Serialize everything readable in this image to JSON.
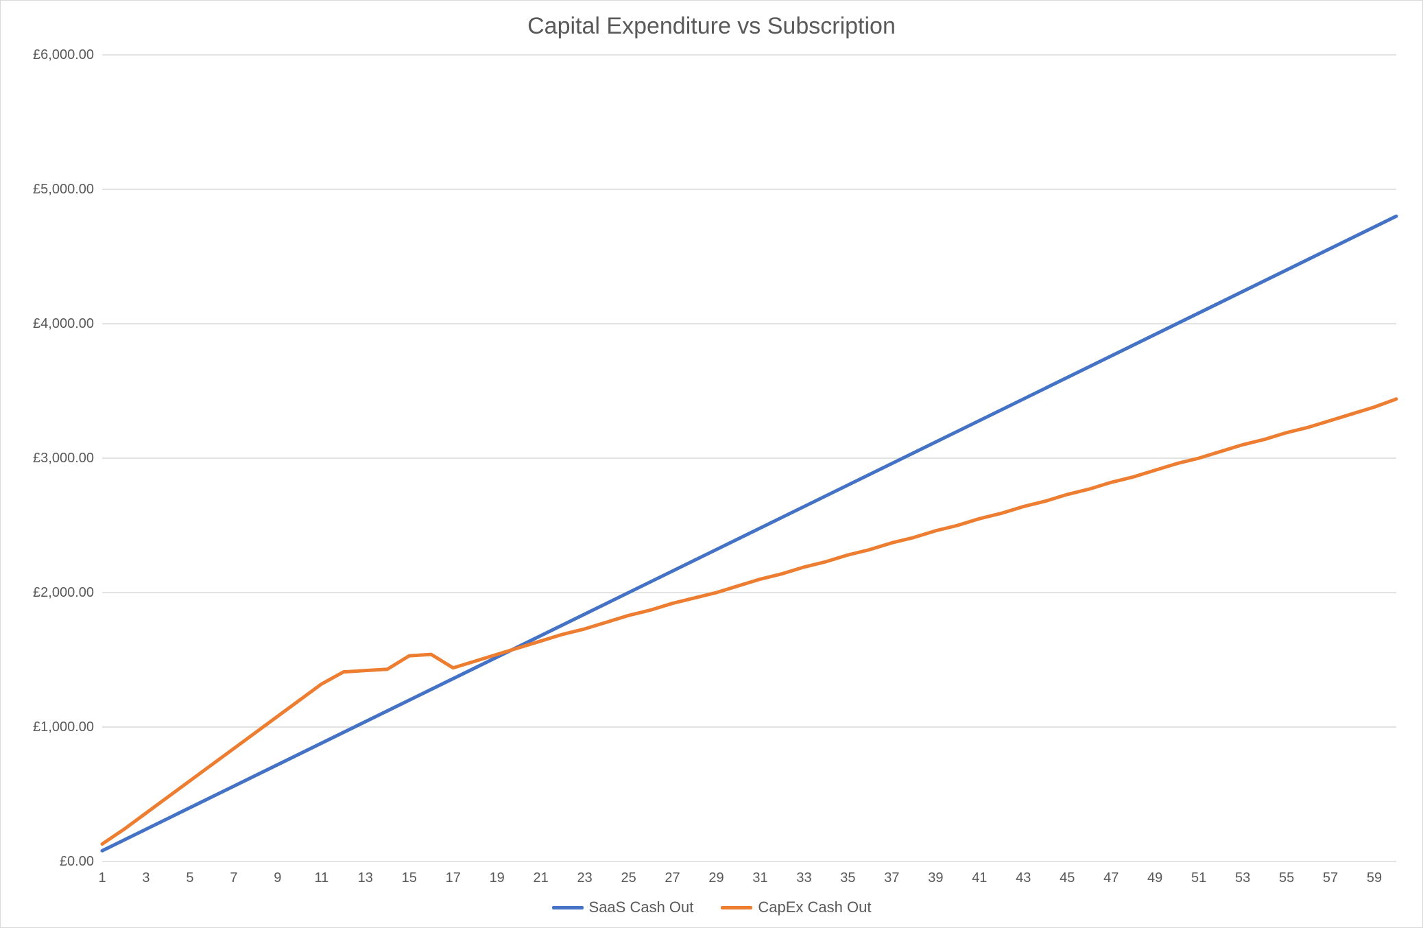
{
  "chart": {
    "type": "line",
    "title": "Capital Expenditure vs Subscription",
    "title_fontsize": 34,
    "title_color": "#595959",
    "background_color": "#ffffff",
    "border_color": "#d9d9d9",
    "grid_color": "#d9d9d9",
    "axis_label_color": "#595959",
    "axis_fontsize": 20,
    "line_width": 5,
    "x": {
      "min": 1,
      "max": 60,
      "tick_start": 1,
      "tick_step": 2,
      "tick_end": 59
    },
    "y": {
      "min": 0,
      "max": 6000,
      "tick_start": 0,
      "tick_step": 1000,
      "tick_end": 6000,
      "tick_format": "gbp2"
    },
    "series": [
      {
        "name": "SaaS Cash Out",
        "color": "#4472c4",
        "data": [
          [
            1,
            80
          ],
          [
            60,
            4800
          ]
        ]
      },
      {
        "name": "CapEx Cash Out",
        "color": "#ed7d31",
        "data": [
          [
            1,
            130
          ],
          [
            2,
            240
          ],
          [
            3,
            360
          ],
          [
            4,
            480
          ],
          [
            5,
            600
          ],
          [
            6,
            720
          ],
          [
            7,
            840
          ],
          [
            8,
            960
          ],
          [
            9,
            1080
          ],
          [
            10,
            1200
          ],
          [
            11,
            1320
          ],
          [
            12,
            1410
          ],
          [
            13,
            1420
          ],
          [
            14,
            1430
          ],
          [
            15,
            1530
          ],
          [
            16,
            1540
          ],
          [
            17,
            1440
          ],
          [
            18,
            1490
          ],
          [
            19,
            1540
          ],
          [
            20,
            1590
          ],
          [
            21,
            1640
          ],
          [
            22,
            1690
          ],
          [
            23,
            1730
          ],
          [
            24,
            1780
          ],
          [
            25,
            1830
          ],
          [
            26,
            1870
          ],
          [
            27,
            1920
          ],
          [
            28,
            1960
          ],
          [
            29,
            2000
          ],
          [
            30,
            2050
          ],
          [
            31,
            2100
          ],
          [
            32,
            2140
          ],
          [
            33,
            2190
          ],
          [
            34,
            2230
          ],
          [
            35,
            2280
          ],
          [
            36,
            2320
          ],
          [
            37,
            2370
          ],
          [
            38,
            2410
          ],
          [
            39,
            2460
          ],
          [
            40,
            2500
          ],
          [
            41,
            2550
          ],
          [
            42,
            2590
          ],
          [
            43,
            2640
          ],
          [
            44,
            2680
          ],
          [
            45,
            2730
          ],
          [
            46,
            2770
          ],
          [
            47,
            2820
          ],
          [
            48,
            2860
          ],
          [
            49,
            2910
          ],
          [
            50,
            2960
          ],
          [
            51,
            3000
          ],
          [
            52,
            3050
          ],
          [
            53,
            3100
          ],
          [
            54,
            3140
          ],
          [
            55,
            3190
          ],
          [
            56,
            3230
          ],
          [
            57,
            3280
          ],
          [
            58,
            3330
          ],
          [
            59,
            3380
          ],
          [
            60,
            3440
          ]
        ]
      }
    ],
    "legend": {
      "position": "bottom",
      "items": [
        {
          "label": "SaaS Cash Out",
          "color": "#4472c4"
        },
        {
          "label": "CapEx Cash Out",
          "color": "#ed7d31"
        }
      ]
    }
  }
}
